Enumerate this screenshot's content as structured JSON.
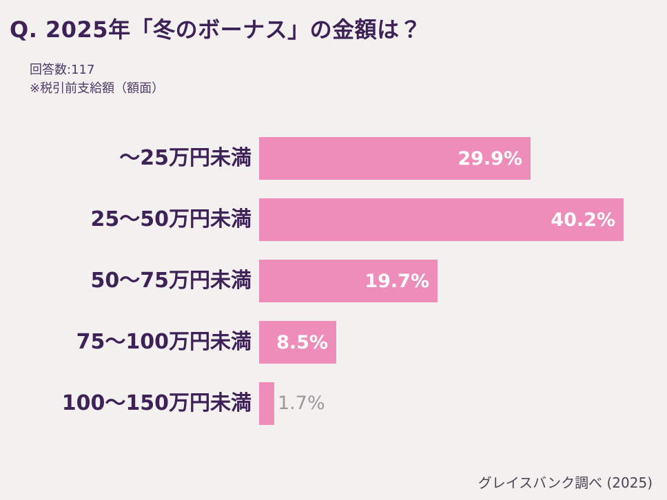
{
  "page": {
    "background": "#f3f1ef"
  },
  "header": {
    "title": "Q. 2025年「冬のボーナス」の金額は？",
    "note_line1": "回答数:117",
    "note_line2": "※税引前支給額（額面）"
  },
  "footer": {
    "source": "グレイスバンク調べ (2025)"
  },
  "chart_data": {
    "type": "bar",
    "orientation": "horizontal",
    "title": "Q. 2025年「冬のボーナス」の金額は？",
    "categories": [
      "〜25万円未満",
      "25〜50万円未満",
      "50〜75万円未満",
      "75〜100万円未満",
      "100〜150万円未満"
    ],
    "values": [
      29.9,
      40.2,
      19.7,
      8.5,
      1.7
    ],
    "value_labels": [
      "29.9%",
      "40.2%",
      "19.7%",
      "8.5%",
      "1.7%"
    ],
    "xlim": [
      0,
      45
    ],
    "grid": false,
    "legend": false,
    "bar_color": "#ee8cba",
    "inside_value_label_color": "#ffffff",
    "outside_value_label_color": "#9a989a",
    "notes": [
      "回答数:117",
      "※税引前支給額（額面）"
    ],
    "source": "グレイスバンク調べ (2025)"
  }
}
